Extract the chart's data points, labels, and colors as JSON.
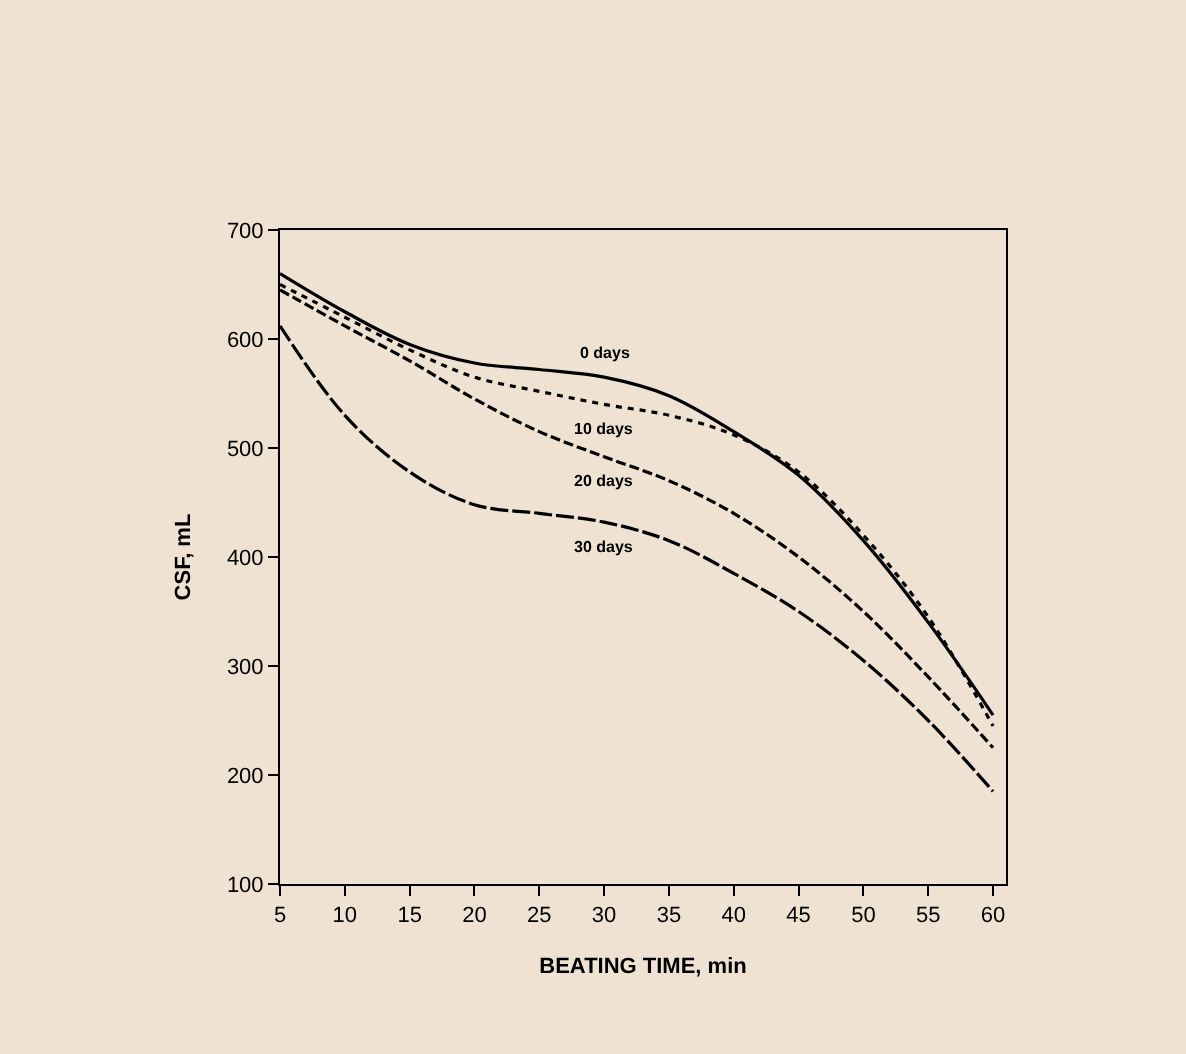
{
  "chart_data": {
    "type": "line",
    "xlabel": "BEATING TIME, min",
    "ylabel": "CSF, mL",
    "x": [
      5,
      10,
      15,
      20,
      25,
      30,
      35,
      40,
      45,
      50,
      55,
      60
    ],
    "series": [
      {
        "name": "0 days",
        "color": "#000000",
        "line_style": "solid",
        "values": [
          660,
          625,
          595,
          578,
          572,
          565,
          548,
          515,
          475,
          415,
          340,
          255
        ]
      },
      {
        "name": "10 days",
        "color": "#000000",
        "line_style": "dotted",
        "values": [
          650,
          620,
          590,
          565,
          552,
          540,
          530,
          512,
          478,
          420,
          345,
          245
        ]
      },
      {
        "name": "20 days",
        "color": "#000000",
        "line_style": "dashed",
        "values": [
          645,
          612,
          580,
          545,
          515,
          492,
          470,
          440,
          400,
          350,
          290,
          225
        ]
      },
      {
        "name": "30 days",
        "color": "#000000",
        "line_style": "longdash",
        "values": [
          612,
          530,
          478,
          448,
          440,
          432,
          415,
          385,
          350,
          305,
          250,
          185
        ]
      }
    ],
    "xlim": [
      5,
      61
    ],
    "xticks": [
      5,
      10,
      15,
      20,
      25,
      30,
      35,
      40,
      45,
      50,
      55,
      60
    ],
    "ylim": [
      100,
      700
    ],
    "yticks": [
      100,
      200,
      300,
      400,
      500,
      600,
      700
    ],
    "grid": false,
    "legend": false,
    "marker": "none"
  }
}
